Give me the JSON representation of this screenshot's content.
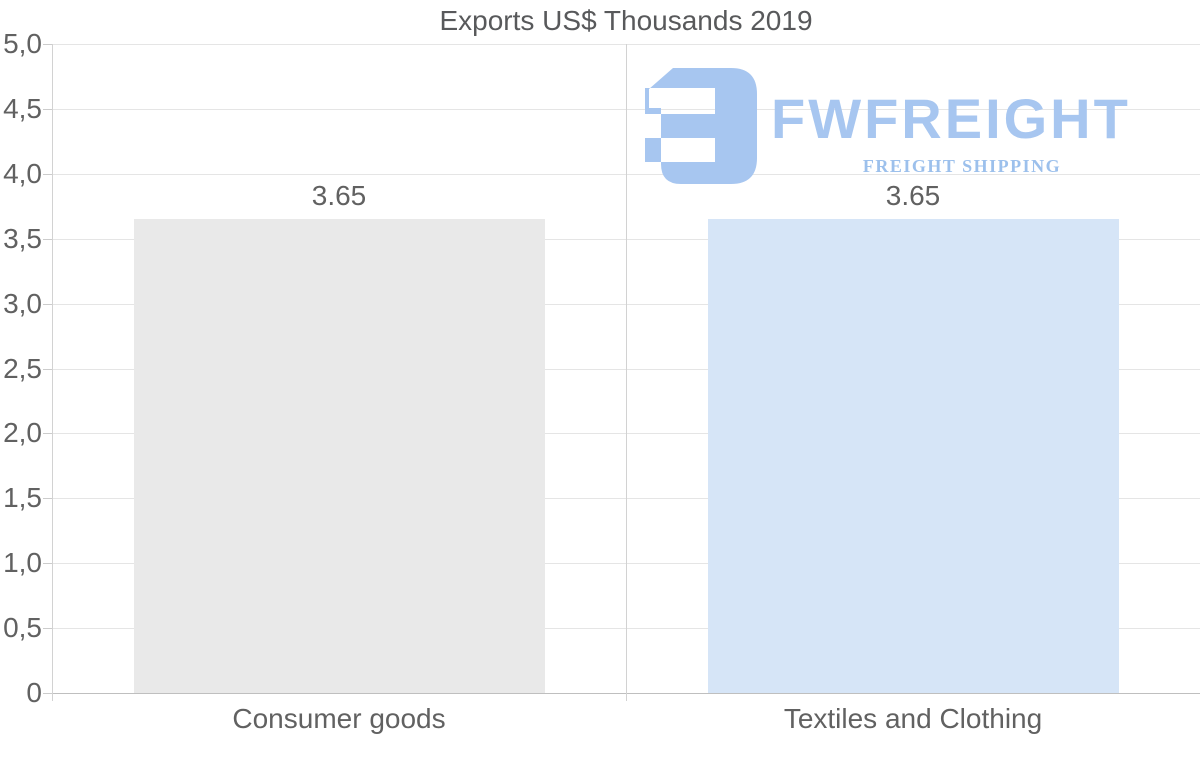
{
  "chart_data": {
    "type": "bar",
    "title": "Exports US$ Thousands 2019",
    "categories": [
      "Consumer goods",
      "Textiles and Clothing"
    ],
    "values": [
      3.65,
      3.65
    ],
    "value_labels": [
      "3.65",
      "3.65"
    ],
    "series_colors": [
      "#e9e9e9",
      "#d6e5f7"
    ],
    "ylim": [
      0,
      5
    ],
    "ytick_values": [
      0,
      0.5,
      1,
      1.5,
      2,
      2.5,
      3,
      3.5,
      4,
      4.5,
      5
    ],
    "ytick_labels": [
      "0",
      "0,5",
      "1,0",
      "1,5",
      "2,0",
      "2,5",
      "3,0",
      "3,5",
      "4,0",
      "4,5",
      "5,0"
    ],
    "grid": true,
    "legend": false,
    "text_color": "#616161"
  },
  "watermark": {
    "brand": "FWFREIGHT",
    "tagline": "FREIGHT SHIPPING",
    "color": "#a7c6f0",
    "tagline_color": "#9cc0ec"
  }
}
